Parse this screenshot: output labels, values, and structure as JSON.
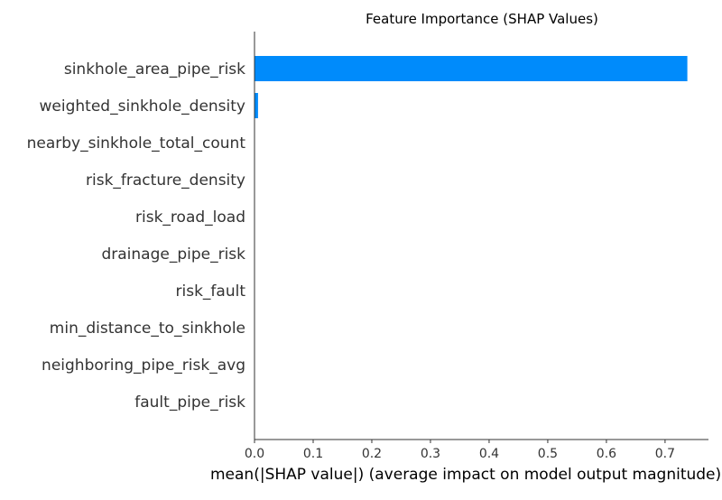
{
  "chart_data": {
    "type": "bar",
    "orientation": "horizontal",
    "title": "Feature Importance (SHAP Values)",
    "xlabel": "mean(|SHAP value|) (average impact on model output magnitude)",
    "ylabel": "",
    "categories": [
      "sinkhole_area_pipe_risk",
      "weighted_sinkhole_density",
      "nearby_sinkhole_total_count",
      "risk_fracture_density",
      "risk_road_load",
      "drainage_pipe_risk",
      "risk_fault",
      "min_distance_to_sinkhole",
      "neighboring_pipe_risk_avg",
      "fault_pipe_risk"
    ],
    "values": [
      0.738,
      0.006,
      0,
      0,
      0,
      0,
      0,
      0,
      0,
      0
    ],
    "xlim": [
      0,
      0.774
    ],
    "xticks": [
      0.0,
      0.1,
      0.2,
      0.3,
      0.4,
      0.5,
      0.6,
      0.7
    ],
    "xtick_labels": [
      "0.0",
      "0.1",
      "0.2",
      "0.3",
      "0.4",
      "0.5",
      "0.6",
      "0.7"
    ],
    "grid": false,
    "colors": {
      "bar": "#008bfb",
      "axis": "#333333",
      "text": "#333333"
    }
  }
}
